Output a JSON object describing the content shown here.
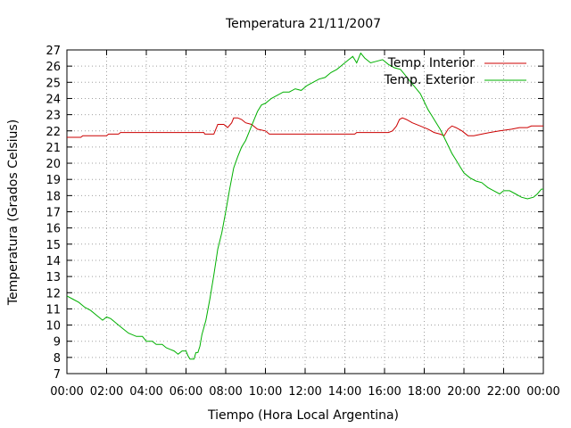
{
  "chart_data": {
    "type": "line",
    "title": "Temperatura 21/11/2007",
    "xlabel": "Tiempo (Hora Local Argentina)",
    "ylabel": "Temperatura (Grados Celsius)",
    "xlim": [
      0,
      24
    ],
    "ylim": [
      7,
      27
    ],
    "grid": true,
    "legend_position": "top-right",
    "x_tick_labels": [
      "00:00",
      "02:00",
      "04:00",
      "06:00",
      "08:00",
      "10:00",
      "12:00",
      "14:00",
      "16:00",
      "18:00",
      "20:00",
      "22:00",
      "00:00"
    ],
    "y_ticks": [
      7,
      8,
      9,
      10,
      11,
      12,
      13,
      14,
      15,
      16,
      17,
      18,
      19,
      20,
      21,
      22,
      23,
      24,
      25,
      26,
      27
    ],
    "series": [
      {
        "name": "Temp. Interior",
        "color": "#cc0000",
        "points": [
          [
            0,
            21.6
          ],
          [
            0.7,
            21.6
          ],
          [
            0.8,
            21.7
          ],
          [
            2.0,
            21.7
          ],
          [
            2.1,
            21.8
          ],
          [
            2.6,
            21.8
          ],
          [
            2.7,
            21.9
          ],
          [
            6.9,
            21.9
          ],
          [
            6.95,
            21.8
          ],
          [
            7.4,
            21.8
          ],
          [
            7.5,
            22.1
          ],
          [
            7.6,
            22.4
          ],
          [
            7.9,
            22.4
          ],
          [
            8.1,
            22.2
          ],
          [
            8.3,
            22.5
          ],
          [
            8.4,
            22.8
          ],
          [
            8.6,
            22.8
          ],
          [
            8.8,
            22.7
          ],
          [
            9.0,
            22.5
          ],
          [
            9.3,
            22.4
          ],
          [
            9.6,
            22.1
          ],
          [
            10.0,
            22.0
          ],
          [
            10.2,
            21.8
          ],
          [
            14.0,
            21.8
          ],
          [
            14.5,
            21.8
          ],
          [
            14.6,
            21.9
          ],
          [
            16.2,
            21.9
          ],
          [
            16.4,
            22.0
          ],
          [
            16.6,
            22.3
          ],
          [
            16.75,
            22.7
          ],
          [
            16.9,
            22.8
          ],
          [
            17.1,
            22.7
          ],
          [
            17.4,
            22.5
          ],
          [
            17.8,
            22.3
          ],
          [
            18.2,
            22.1
          ],
          [
            18.5,
            21.9
          ],
          [
            18.8,
            21.8
          ],
          [
            19.0,
            21.7
          ],
          [
            19.2,
            22.1
          ],
          [
            19.4,
            22.3
          ],
          [
            19.6,
            22.2
          ],
          [
            19.9,
            22.0
          ],
          [
            20.2,
            21.7
          ],
          [
            20.5,
            21.7
          ],
          [
            20.9,
            21.8
          ],
          [
            21.3,
            21.9
          ],
          [
            21.8,
            22.0
          ],
          [
            22.4,
            22.1
          ],
          [
            22.8,
            22.2
          ],
          [
            23.2,
            22.2
          ],
          [
            23.4,
            22.3
          ],
          [
            24.0,
            22.3
          ]
        ]
      },
      {
        "name": "Temp. Exterior",
        "color": "#00b000",
        "points": [
          [
            0,
            11.8
          ],
          [
            0.3,
            11.6
          ],
          [
            0.6,
            11.4
          ],
          [
            0.9,
            11.1
          ],
          [
            1.2,
            10.9
          ],
          [
            1.5,
            10.6
          ],
          [
            1.8,
            10.3
          ],
          [
            2.0,
            10.5
          ],
          [
            2.2,
            10.4
          ],
          [
            2.5,
            10.1
          ],
          [
            2.8,
            9.8
          ],
          [
            3.1,
            9.5
          ],
          [
            3.5,
            9.3
          ],
          [
            3.8,
            9.3
          ],
          [
            4.0,
            9.0
          ],
          [
            4.3,
            9.0
          ],
          [
            4.5,
            8.8
          ],
          [
            4.8,
            8.8
          ],
          [
            5.0,
            8.6
          ],
          [
            5.2,
            8.5
          ],
          [
            5.4,
            8.4
          ],
          [
            5.6,
            8.2
          ],
          [
            5.8,
            8.4
          ],
          [
            6.0,
            8.4
          ],
          [
            6.1,
            8.1
          ],
          [
            6.2,
            7.9
          ],
          [
            6.4,
            7.9
          ],
          [
            6.5,
            8.3
          ],
          [
            6.6,
            8.3
          ],
          [
            6.7,
            8.7
          ],
          [
            6.8,
            9.4
          ],
          [
            7.0,
            10.3
          ],
          [
            7.2,
            11.6
          ],
          [
            7.4,
            13.1
          ],
          [
            7.6,
            14.7
          ],
          [
            7.8,
            15.7
          ],
          [
            8.0,
            17.0
          ],
          [
            8.2,
            18.4
          ],
          [
            8.4,
            19.7
          ],
          [
            8.6,
            20.4
          ],
          [
            8.8,
            21.0
          ],
          [
            9.0,
            21.4
          ],
          [
            9.2,
            22.0
          ],
          [
            9.4,
            22.6
          ],
          [
            9.6,
            23.2
          ],
          [
            9.8,
            23.6
          ],
          [
            10.0,
            23.7
          ],
          [
            10.3,
            24.0
          ],
          [
            10.6,
            24.2
          ],
          [
            10.9,
            24.4
          ],
          [
            11.2,
            24.4
          ],
          [
            11.5,
            24.6
          ],
          [
            11.8,
            24.5
          ],
          [
            12.1,
            24.8
          ],
          [
            12.4,
            25.0
          ],
          [
            12.7,
            25.2
          ],
          [
            13.0,
            25.3
          ],
          [
            13.3,
            25.6
          ],
          [
            13.6,
            25.8
          ],
          [
            13.9,
            26.1
          ],
          [
            14.2,
            26.4
          ],
          [
            14.4,
            26.6
          ],
          [
            14.6,
            26.2
          ],
          [
            14.8,
            26.8
          ],
          [
            15.0,
            26.5
          ],
          [
            15.3,
            26.2
          ],
          [
            15.6,
            26.3
          ],
          [
            15.9,
            26.4
          ],
          [
            16.2,
            26.1
          ],
          [
            16.5,
            25.9
          ],
          [
            16.8,
            25.8
          ],
          [
            17.0,
            25.5
          ],
          [
            17.2,
            25.2
          ],
          [
            17.4,
            24.9
          ],
          [
            17.6,
            24.6
          ],
          [
            17.8,
            24.3
          ],
          [
            18.0,
            23.8
          ],
          [
            18.2,
            23.3
          ],
          [
            18.4,
            22.9
          ],
          [
            18.6,
            22.5
          ],
          [
            18.8,
            22.1
          ],
          [
            19.0,
            21.6
          ],
          [
            19.2,
            21.1
          ],
          [
            19.4,
            20.6
          ],
          [
            19.6,
            20.2
          ],
          [
            19.8,
            19.8
          ],
          [
            20.0,
            19.4
          ],
          [
            20.3,
            19.1
          ],
          [
            20.6,
            18.9
          ],
          [
            20.9,
            18.8
          ],
          [
            21.2,
            18.5
          ],
          [
            21.5,
            18.3
          ],
          [
            21.8,
            18.1
          ],
          [
            22.0,
            18.3
          ],
          [
            22.3,
            18.3
          ],
          [
            22.6,
            18.1
          ],
          [
            22.9,
            17.9
          ],
          [
            23.2,
            17.8
          ],
          [
            23.5,
            17.9
          ],
          [
            23.7,
            18.1
          ],
          [
            23.9,
            18.4
          ],
          [
            24.0,
            18.4
          ]
        ]
      }
    ]
  }
}
